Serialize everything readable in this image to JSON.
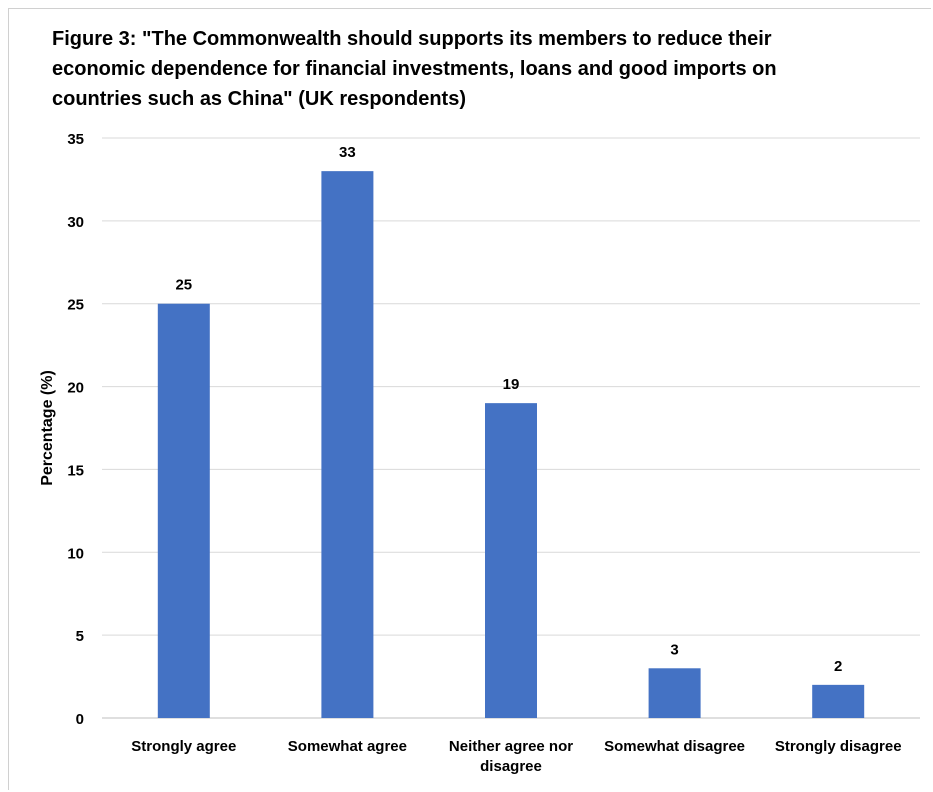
{
  "chart_data": {
    "type": "bar",
    "title": "Figure 3: \"The Commonwealth should supports its members to reduce their\neconomic dependence for financial investments, loans and good imports on\ncountries such as China\" (UK respondents)",
    "xlabel": "",
    "ylabel": "Percentage (%)",
    "categories": [
      [
        "Strongly agree"
      ],
      [
        "Somewhat agree"
      ],
      [
        "Neither agree nor",
        "disagree"
      ],
      [
        "Somewhat disagree"
      ],
      [
        "Strongly disagree"
      ]
    ],
    "values": [
      25,
      33,
      19,
      3,
      2
    ],
    "data_labels": [
      "25",
      "33",
      "19",
      "3",
      "2"
    ],
    "ylim": [
      0,
      35
    ],
    "yticks": [
      0,
      5,
      10,
      15,
      20,
      25,
      30,
      35
    ],
    "grid": true,
    "legend": "none",
    "colors": {
      "bar": "#4472C4",
      "grid": "#d9d9d9",
      "axis": "#bfbfbf",
      "text": "#000000"
    }
  }
}
